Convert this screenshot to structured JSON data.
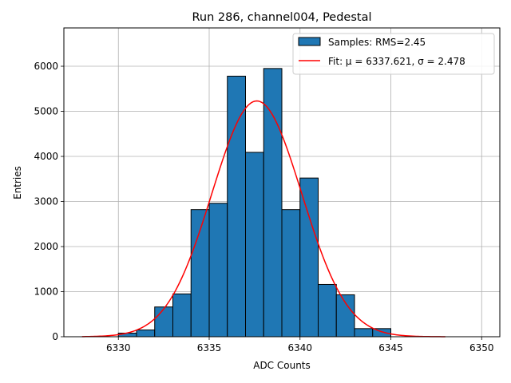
{
  "chart_data": {
    "type": "bar",
    "title": "Run 286, channel004, Pedestal",
    "xlabel": "ADC Counts",
    "ylabel": "Entries",
    "xlim": [
      6327,
      6351
    ],
    "ylim": [
      0,
      6850
    ],
    "xticks": [
      6330,
      6335,
      6340,
      6345,
      6350
    ],
    "yticks": [
      0,
      1000,
      2000,
      3000,
      4000,
      5000,
      6000
    ],
    "grid": true,
    "legend_position": "top-right",
    "bin_width": 1,
    "bins": [
      {
        "x": 6330,
        "count": 80
      },
      {
        "x": 6331,
        "count": 150
      },
      {
        "x": 6332,
        "count": 660
      },
      {
        "x": 6333,
        "count": 950
      },
      {
        "x": 6334,
        "count": 2820
      },
      {
        "x": 6335,
        "count": 2960
      },
      {
        "x": 6336,
        "count": 5780
      },
      {
        "x": 6337,
        "count": 4090
      },
      {
        "x": 6338,
        "count": 5950
      },
      {
        "x": 6339,
        "count": 2820
      },
      {
        "x": 6340,
        "count": 3520
      },
      {
        "x": 6341,
        "count": 1160
      },
      {
        "x": 6342,
        "count": 930
      },
      {
        "x": 6343,
        "count": 180
      },
      {
        "x": 6344,
        "count": 180
      }
    ],
    "fit": {
      "mu": 6337.621,
      "sigma": 2.478,
      "amplitude": 5230,
      "x_range": [
        6328,
        6348
      ]
    },
    "series": [
      {
        "name": "Samples: RMS=2.45",
        "kind": "histogram",
        "color": "#1f77b4"
      },
      {
        "name": "Fit: μ = 6337.621, σ = 2.478",
        "kind": "line",
        "color": "#ff0000"
      }
    ]
  }
}
